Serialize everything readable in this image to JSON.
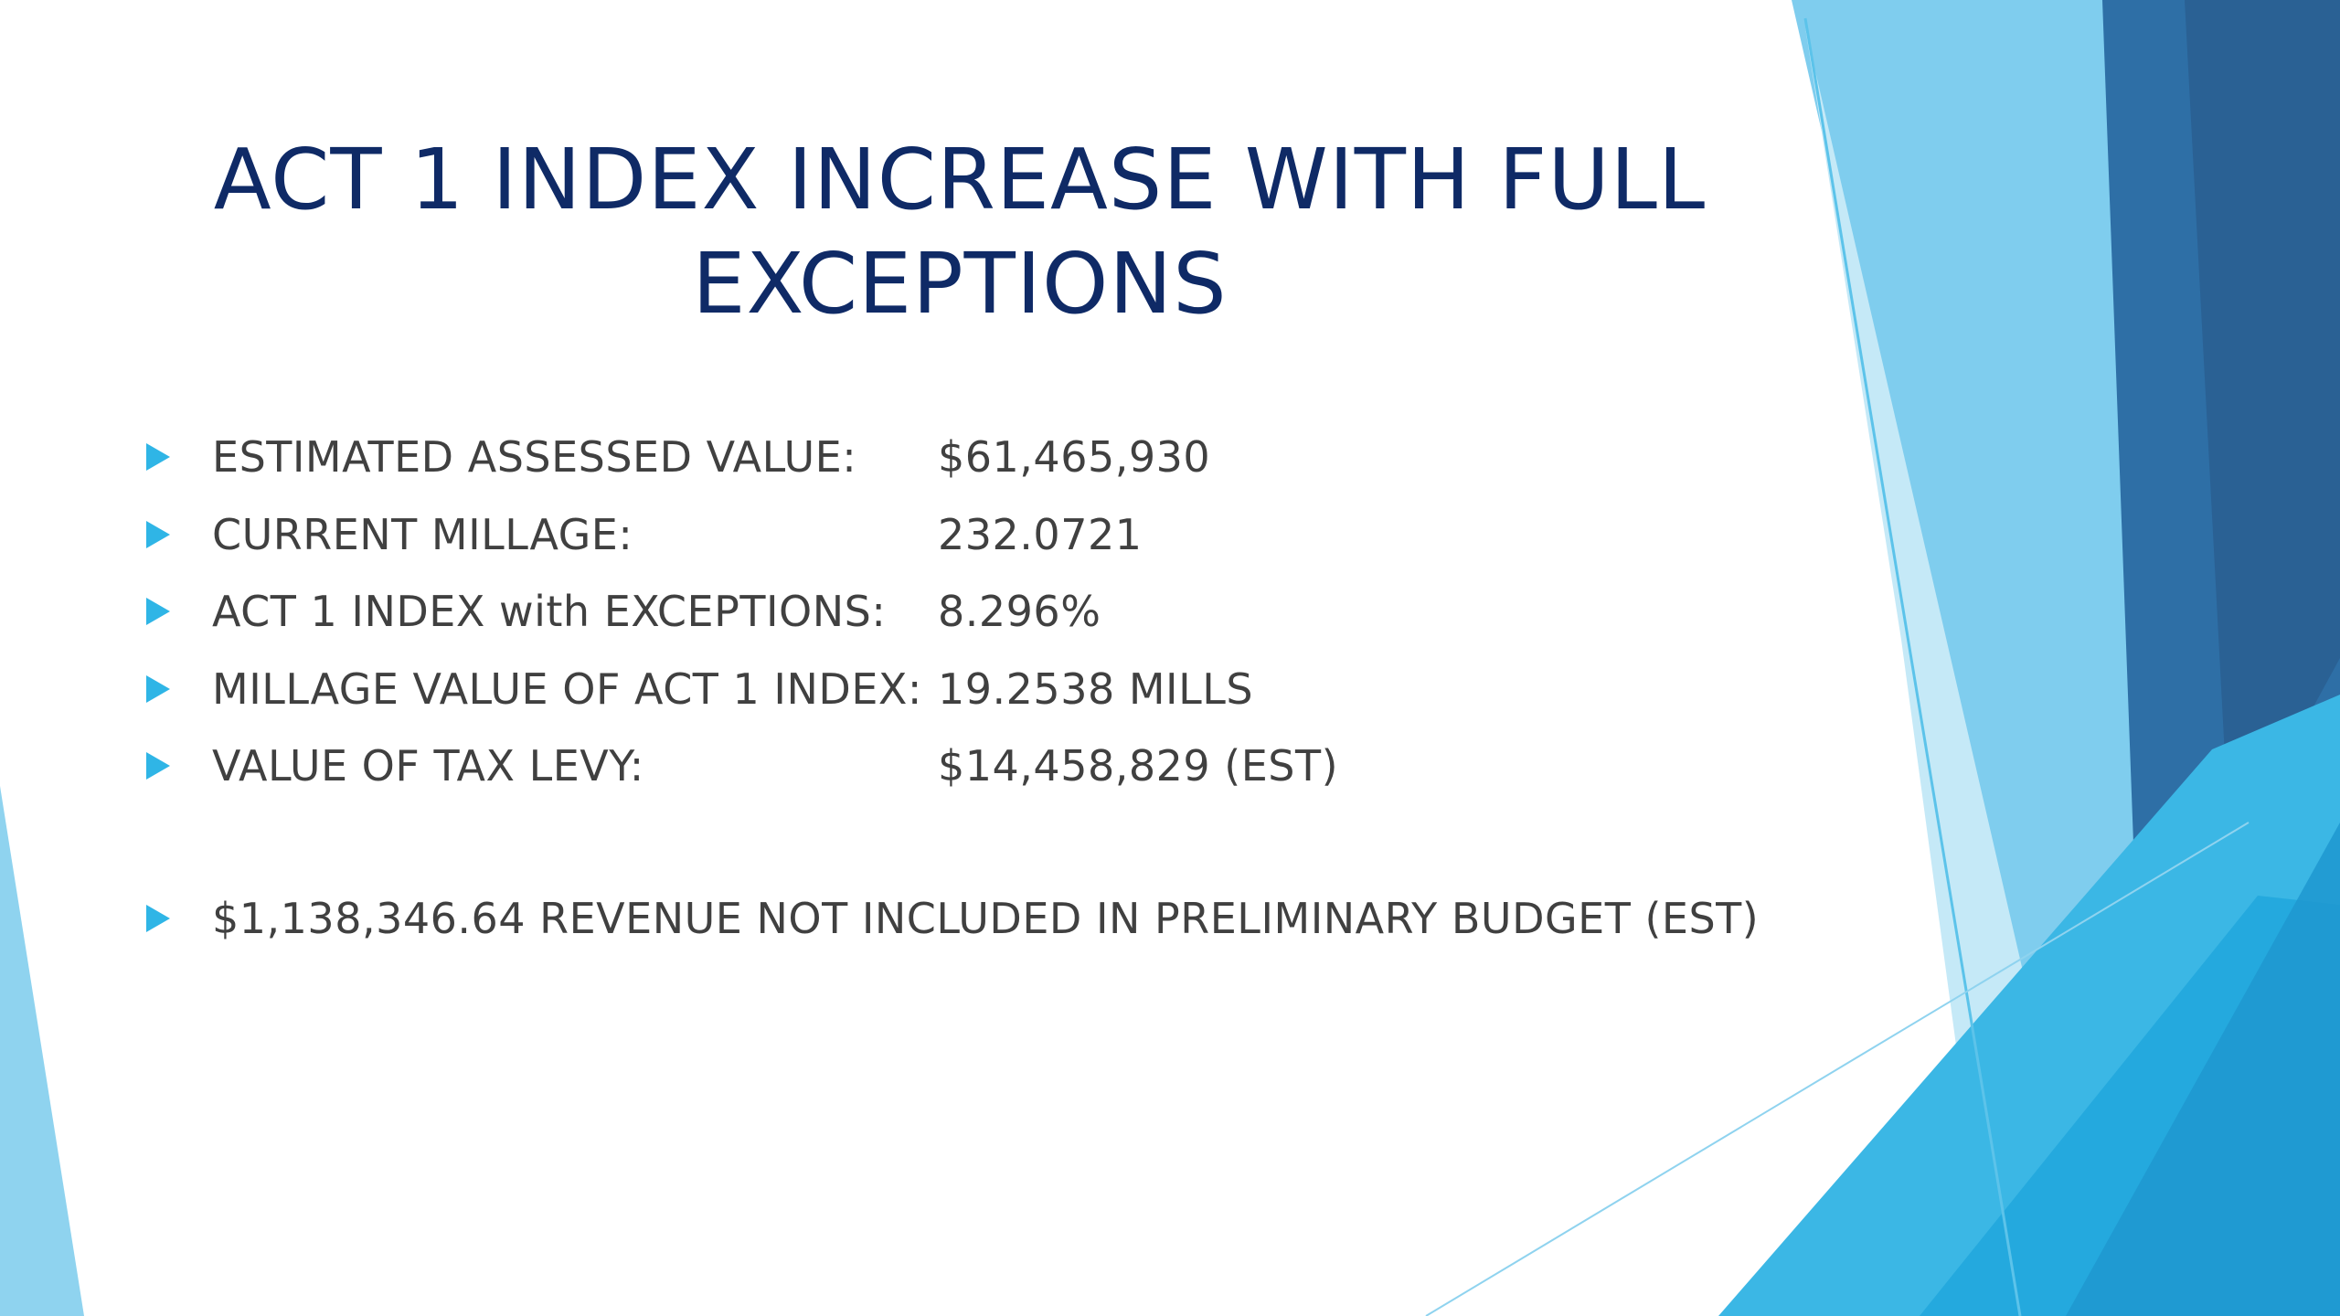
{
  "slide": {
    "title_lines": [
      "ACT 1 INDEX INCREASE WITH FULL",
      "EXCEPTIONS"
    ],
    "items": [
      {
        "label": "ESTIMATED ASSESSED VALUE:",
        "value": "$61,465,930"
      },
      {
        "label": "CURRENT MILLAGE:",
        "value": "232.0721"
      },
      {
        "label": "ACT 1 INDEX with EXCEPTIONS:",
        "value": "8.296%"
      },
      {
        "label": "MILLAGE VALUE OF ACT 1 INDEX:",
        "value": "19.2538 MILLS"
      },
      {
        "label": "VALUE OF TAX LEVY:",
        "value": "$14,458,829 (EST)"
      }
    ],
    "note": "$1,138,346.64 REVENUE NOT INCLUDED IN PRELIMINARY BUDGET (EST)"
  },
  "theme": {
    "title_color": "#0f2a66",
    "text_color": "#404040",
    "bullet_color": "#2fb5e6",
    "accent_light": "#8fd3ef",
    "accent_mid": "#29b3e3",
    "accent_dark": "#2a6a9e"
  }
}
